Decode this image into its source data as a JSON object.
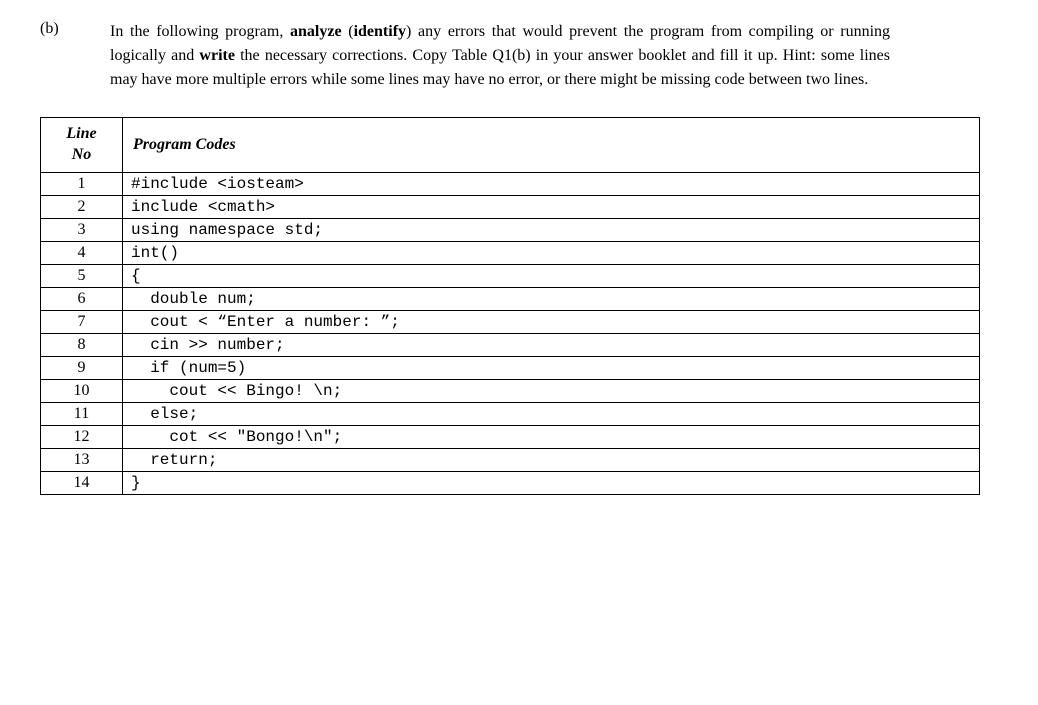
{
  "question": {
    "label": "(b)",
    "text_parts": [
      {
        "text": "In the following program, ",
        "bold": false
      },
      {
        "text": "analyze ",
        "bold": true
      },
      {
        "text": "(",
        "bold": false
      },
      {
        "text": "identify",
        "bold": true
      },
      {
        "text": ") any errors that would prevent the program from compiling or running logically and ",
        "bold": false
      },
      {
        "text": "write",
        "bold": true
      },
      {
        "text": " the necessary corrections. Copy Table Q1(b) in your answer booklet and fill it up. Hint: some lines may have more multiple errors while some lines may have no error, or there might be missing code between two lines.",
        "bold": false
      }
    ]
  },
  "table": {
    "headers": {
      "col1_line1": "Line",
      "col1_line2": "No",
      "col2": "Program Codes"
    },
    "rows": [
      {
        "line": "1",
        "code": "#include <iosteam>"
      },
      {
        "line": "2",
        "code": "include <cmath>"
      },
      {
        "line": "3",
        "code": "using namespace std;"
      },
      {
        "line": "4",
        "code": "int()"
      },
      {
        "line": "5",
        "code": "{"
      },
      {
        "line": "6",
        "code": "  double num;"
      },
      {
        "line": "7",
        "code": "  cout < “Enter a number: ”;"
      },
      {
        "line": "8",
        "code": "  cin >> number;"
      },
      {
        "line": "9",
        "code": "  if (num=5)"
      },
      {
        "line": "10",
        "code": "    cout << Bingo! \\n;"
      },
      {
        "line": "11",
        "code": "  else;"
      },
      {
        "line": "12",
        "code": "    cot << \"Bongo!\\n\";"
      },
      {
        "line": "13",
        "code": "  return;"
      },
      {
        "line": "14",
        "code": "}"
      }
    ]
  }
}
